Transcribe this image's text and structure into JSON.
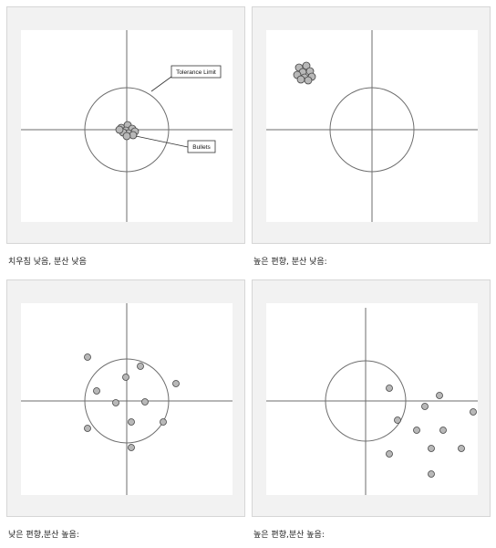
{
  "panels": [
    {
      "caption": "치우침 낮음, 분산 낮음",
      "labels": {
        "tolerance": "Tolerance Limit",
        "bullets": "Bullets"
      },
      "points": [
        [
          -6,
          -2
        ],
        [
          1,
          -5
        ],
        [
          -1,
          1
        ],
        [
          6,
          -1
        ],
        [
          2,
          4
        ],
        [
          -4,
          3
        ],
        [
          9,
          2
        ],
        [
          7,
          6
        ],
        [
          0,
          7
        ],
        [
          -8,
          0
        ]
      ]
    },
    {
      "caption": "높은 편향, 분산 낮음:",
      "points": [
        [
          -80,
          -68
        ],
        [
          -72,
          -70
        ],
        [
          -76,
          -63
        ],
        [
          -68,
          -64
        ],
        [
          -82,
          -60
        ],
        [
          -74,
          -57
        ],
        [
          -66,
          -58
        ],
        [
          -70,
          -54
        ],
        [
          -78,
          -55
        ]
      ]
    },
    {
      "caption": "낮은 편향,분산 높음:",
      "points": [
        [
          -43,
          -48
        ],
        [
          15,
          -38
        ],
        [
          -1,
          -26
        ],
        [
          54,
          -19
        ],
        [
          -33,
          -11
        ],
        [
          -12,
          2
        ],
        [
          20,
          1
        ],
        [
          5,
          23
        ],
        [
          40,
          23
        ],
        [
          -43,
          30
        ],
        [
          5,
          51
        ]
      ]
    },
    {
      "caption": "높은 편향,분산 높음:",
      "points": [
        [
          26,
          -14
        ],
        [
          81,
          -6
        ],
        [
          65,
          6
        ],
        [
          118,
          12
        ],
        [
          35,
          21
        ],
        [
          56,
          32
        ],
        [
          85,
          32
        ],
        [
          72,
          52
        ],
        [
          105,
          52
        ],
        [
          26,
          58
        ],
        [
          72,
          80
        ]
      ]
    }
  ]
}
